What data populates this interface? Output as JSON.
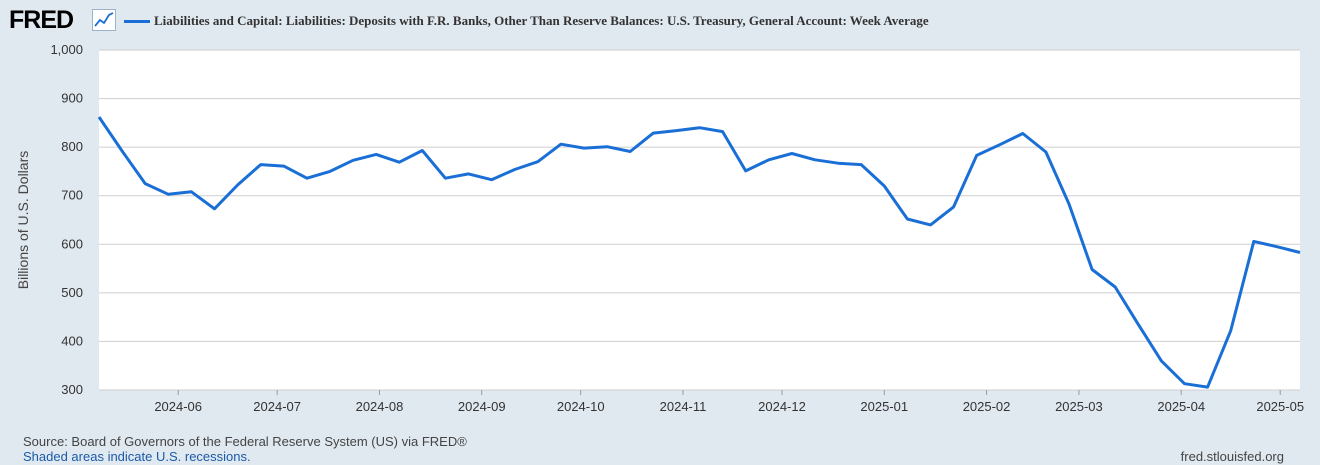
{
  "brand": {
    "logo_text": "FRED",
    "logo_icon": "trend-line-icon"
  },
  "colors": {
    "series": "#1a6fd6",
    "background": "#e1e9f0",
    "plot": "#ffffff",
    "grid": "#cfcfcf"
  },
  "chart_data": {
    "type": "line",
    "title": "",
    "xlabel": "",
    "ylabel": "Billions of U.S. Dollars",
    "ylim": [
      300,
      1000
    ],
    "yticks": [
      300,
      400,
      500,
      600,
      700,
      800,
      900,
      1000
    ],
    "ytick_labels": [
      "300",
      "400",
      "500",
      "600",
      "700",
      "800",
      "900",
      "1,000"
    ],
    "xlim": [
      "2024-05-08",
      "2025-05-07"
    ],
    "xticks": [
      "2024-06-01",
      "2024-07-01",
      "2024-08-01",
      "2024-09-01",
      "2024-10-01",
      "2024-11-01",
      "2024-12-01",
      "2025-01-01",
      "2025-02-01",
      "2025-03-01",
      "2025-04-01",
      "2025-05-01"
    ],
    "xtick_labels": [
      "2024-06",
      "2024-07",
      "2024-08",
      "2024-09",
      "2024-10",
      "2024-11",
      "2024-12",
      "2025-01",
      "2025-02",
      "2025-03",
      "2025-04",
      "2025-05"
    ],
    "grid": true,
    "series": [
      {
        "name": "Liabilities and Capital: Liabilities: Deposits with F.R. Banks, Other Than Reserve Balances: U.S. Treasury, General Account: Week Average",
        "x": [
          "2024-05-08",
          "2024-05-15",
          "2024-05-22",
          "2024-05-29",
          "2024-06-05",
          "2024-06-12",
          "2024-06-19",
          "2024-06-26",
          "2024-07-03",
          "2024-07-10",
          "2024-07-17",
          "2024-07-24",
          "2024-07-31",
          "2024-08-07",
          "2024-08-14",
          "2024-08-21",
          "2024-08-28",
          "2024-09-04",
          "2024-09-11",
          "2024-09-18",
          "2024-09-25",
          "2024-10-02",
          "2024-10-09",
          "2024-10-16",
          "2024-10-23",
          "2024-10-30",
          "2024-11-06",
          "2024-11-13",
          "2024-11-20",
          "2024-11-27",
          "2024-12-04",
          "2024-12-11",
          "2024-12-18",
          "2024-12-25",
          "2025-01-01",
          "2025-01-08",
          "2025-01-15",
          "2025-01-22",
          "2025-01-29",
          "2025-02-05",
          "2025-02-12",
          "2025-02-19",
          "2025-02-26",
          "2025-03-05",
          "2025-03-12",
          "2025-03-19",
          "2025-03-26",
          "2025-04-02",
          "2025-04-09",
          "2025-04-16",
          "2025-04-23",
          "2025-04-30",
          "2025-05-07"
        ],
        "y": [
          862,
          792,
          725,
          703,
          708,
          673,
          722,
          764,
          761,
          736,
          750,
          773,
          785,
          769,
          793,
          736,
          745,
          733,
          754,
          770,
          806,
          798,
          801,
          791,
          829,
          834,
          840,
          832,
          751,
          774,
          787,
          774,
          767,
          764,
          720,
          652,
          640,
          677,
          783,
          805,
          828,
          790,
          683,
          548,
          512,
          435,
          360,
          313,
          306,
          422,
          606,
          595,
          583
        ]
      }
    ]
  },
  "footer": {
    "source": "Source: Board of Governors of the Federal Reserve System (US) via FRED®",
    "recessions": "Shaded areas indicate U.S. recessions.",
    "url": "fred.stlouisfed.org"
  }
}
